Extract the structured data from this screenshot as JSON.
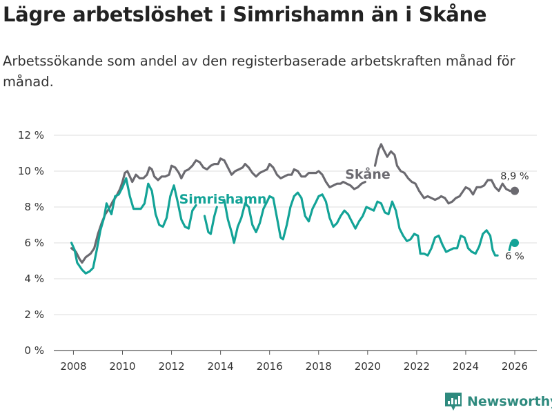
{
  "header": {
    "title": "Lägre arbetslöshet i Simrishamn än i Skåne",
    "subtitle": "Arbetssökande som andel av den registerbaserade arbetskraften månad för månad."
  },
  "brand": {
    "name": "Newsworthy"
  },
  "colors": {
    "skane": "#6b6a70",
    "simrishamn": "#13a397",
    "grid": "#dddddd",
    "brand": "#2e8a7e"
  },
  "chart_data": {
    "type": "line",
    "title": "Lägre arbetslöshet i Simrishamn än i Skåne",
    "subtitle": "Arbetssökande som andel av den registerbaserade arbetskraften månad för månad.",
    "xlabel": "",
    "ylabel": "",
    "xlim": [
      2007.2,
      2026.9
    ],
    "ylim": [
      0,
      12
    ],
    "x_ticks": [
      2008,
      2010,
      2012,
      2014,
      2016,
      2018,
      2020,
      2022,
      2024,
      2026
    ],
    "x_tick_labels": [
      "2008",
      "2010",
      "2012",
      "2014",
      "2016",
      "2018",
      "2020",
      "2022",
      "2024",
      "2026"
    ],
    "y_ticks": [
      0,
      2,
      4,
      6,
      8,
      10,
      12
    ],
    "y_tick_labels": [
      "0 %",
      "2 %",
      "4 %",
      "6 %",
      "8 %",
      "10 %",
      "12 %"
    ],
    "grid": true,
    "series": [
      {
        "name": "Skåne",
        "label": "Skåne",
        "end_label": "8,9 %",
        "end_value": 8.9,
        "end_x": 2026.0,
        "points": [
          [
            2007.92,
            5.7
          ],
          [
            2008.1,
            5.5
          ],
          [
            2008.25,
            5.1
          ],
          [
            2008.35,
            4.9
          ],
          [
            2008.5,
            5.2
          ],
          [
            2008.7,
            5.4
          ],
          [
            2008.85,
            5.7
          ],
          [
            2009.0,
            6.5
          ],
          [
            2009.15,
            7.1
          ],
          [
            2009.3,
            7.6
          ],
          [
            2009.45,
            7.9
          ],
          [
            2009.6,
            8.3
          ],
          [
            2009.75,
            8.6
          ],
          [
            2009.9,
            9.0
          ],
          [
            2010.0,
            9.4
          ],
          [
            2010.1,
            9.9
          ],
          [
            2010.2,
            10.0
          ],
          [
            2010.3,
            9.7
          ],
          [
            2010.4,
            9.4
          ],
          [
            2010.55,
            9.8
          ],
          [
            2010.7,
            9.6
          ],
          [
            2010.85,
            9.6
          ],
          [
            2011.0,
            9.8
          ],
          [
            2011.1,
            10.2
          ],
          [
            2011.2,
            10.1
          ],
          [
            2011.3,
            9.7
          ],
          [
            2011.45,
            9.5
          ],
          [
            2011.6,
            9.7
          ],
          [
            2011.75,
            9.7
          ],
          [
            2011.9,
            9.8
          ],
          [
            2012.0,
            10.3
          ],
          [
            2012.15,
            10.2
          ],
          [
            2012.3,
            9.9
          ],
          [
            2012.4,
            9.6
          ],
          [
            2012.55,
            10.0
          ],
          [
            2012.7,
            10.1
          ],
          [
            2012.85,
            10.3
          ],
          [
            2013.0,
            10.6
          ],
          [
            2013.15,
            10.5
          ],
          [
            2013.3,
            10.2
          ],
          [
            2013.45,
            10.1
          ],
          [
            2013.6,
            10.3
          ],
          [
            2013.75,
            10.4
          ],
          [
            2013.9,
            10.4
          ],
          [
            2014.0,
            10.7
          ],
          [
            2014.15,
            10.6
          ],
          [
            2014.3,
            10.2
          ],
          [
            2014.45,
            9.8
          ],
          [
            2014.6,
            10.0
          ],
          [
            2014.75,
            10.1
          ],
          [
            2014.9,
            10.2
          ],
          [
            2015.0,
            10.4
          ],
          [
            2015.15,
            10.2
          ],
          [
            2015.3,
            9.9
          ],
          [
            2015.45,
            9.7
          ],
          [
            2015.6,
            9.9
          ],
          [
            2015.75,
            10.0
          ],
          [
            2015.9,
            10.1
          ],
          [
            2016.0,
            10.4
          ],
          [
            2016.15,
            10.2
          ],
          [
            2016.3,
            9.8
          ],
          [
            2016.45,
            9.6
          ],
          [
            2016.6,
            9.7
          ],
          [
            2016.75,
            9.8
          ],
          [
            2016.9,
            9.8
          ],
          [
            2017.0,
            10.1
          ],
          [
            2017.15,
            10.0
          ],
          [
            2017.3,
            9.7
          ],
          [
            2017.45,
            9.7
          ],
          [
            2017.6,
            9.9
          ],
          [
            2017.75,
            9.9
          ],
          [
            2017.9,
            9.9
          ],
          [
            2018.0,
            10.0
          ],
          [
            2018.15,
            9.8
          ],
          [
            2018.3,
            9.4
          ],
          [
            2018.45,
            9.1
          ],
          [
            2018.6,
            9.2
          ],
          [
            2018.75,
            9.3
          ],
          [
            2018.9,
            9.3
          ],
          [
            2019.0,
            9.4
          ],
          [
            2019.15,
            9.3
          ],
          [
            2019.3,
            9.2
          ],
          [
            2019.45,
            9.0
          ],
          [
            2019.6,
            9.1
          ],
          [
            2019.75,
            9.3
          ],
          [
            2019.9,
            9.4
          ],
          [
            2020.05,
            null
          ],
          [
            2020.3,
            10.3
          ],
          [
            2020.45,
            11.2
          ],
          [
            2020.55,
            11.5
          ],
          [
            2020.65,
            11.2
          ],
          [
            2020.8,
            10.8
          ],
          [
            2020.95,
            11.1
          ],
          [
            2021.1,
            10.9
          ],
          [
            2021.2,
            10.3
          ],
          [
            2021.35,
            10.0
          ],
          [
            2021.5,
            9.9
          ],
          [
            2021.65,
            9.6
          ],
          [
            2021.8,
            9.4
          ],
          [
            2021.95,
            9.3
          ],
          [
            2022.1,
            8.9
          ],
          [
            2022.3,
            8.5
          ],
          [
            2022.45,
            8.6
          ],
          [
            2022.6,
            8.5
          ],
          [
            2022.75,
            8.4
          ],
          [
            2022.9,
            8.5
          ],
          [
            2023.0,
            8.6
          ],
          [
            2023.15,
            8.5
          ],
          [
            2023.3,
            8.2
          ],
          [
            2023.45,
            8.3
          ],
          [
            2023.6,
            8.5
          ],
          [
            2023.75,
            8.6
          ],
          [
            2023.9,
            8.9
          ],
          [
            2024.0,
            9.1
          ],
          [
            2024.15,
            9.0
          ],
          [
            2024.3,
            8.7
          ],
          [
            2024.45,
            9.1
          ],
          [
            2024.6,
            9.1
          ],
          [
            2024.75,
            9.2
          ],
          [
            2024.9,
            9.5
          ],
          [
            2025.05,
            9.5
          ],
          [
            2025.2,
            9.1
          ],
          [
            2025.35,
            8.9
          ],
          [
            2025.5,
            9.3
          ],
          [
            2025.65,
            9.0
          ],
          [
            2025.8,
            8.9
          ],
          [
            2026.0,
            8.9
          ]
        ]
      },
      {
        "name": "Simrishamn",
        "label": "Simrishamn",
        "end_label": "6 %",
        "end_value": 6.0,
        "end_x": 2026.0,
        "points": [
          [
            2007.92,
            6.0
          ],
          [
            2008.05,
            5.6
          ],
          [
            2008.15,
            4.9
          ],
          [
            2008.35,
            4.5
          ],
          [
            2008.5,
            4.3
          ],
          [
            2008.65,
            4.4
          ],
          [
            2008.8,
            4.6
          ],
          [
            2008.95,
            5.6
          ],
          [
            2009.1,
            6.7
          ],
          [
            2009.25,
            7.4
          ],
          [
            2009.35,
            8.2
          ],
          [
            2009.45,
            7.9
          ],
          [
            2009.55,
            7.6
          ],
          [
            2009.7,
            8.6
          ],
          [
            2009.85,
            8.7
          ],
          [
            2010.0,
            9.1
          ],
          [
            2010.15,
            9.6
          ],
          [
            2010.3,
            8.6
          ],
          [
            2010.45,
            7.9
          ],
          [
            2010.6,
            7.9
          ],
          [
            2010.75,
            7.9
          ],
          [
            2010.9,
            8.2
          ],
          [
            2011.05,
            9.3
          ],
          [
            2011.2,
            8.9
          ],
          [
            2011.35,
            7.6
          ],
          [
            2011.5,
            7.0
          ],
          [
            2011.65,
            6.9
          ],
          [
            2011.8,
            7.4
          ],
          [
            2011.95,
            8.6
          ],
          [
            2012.1,
            9.2
          ],
          [
            2012.25,
            8.3
          ],
          [
            2012.4,
            7.3
          ],
          [
            2012.55,
            6.9
          ],
          [
            2012.7,
            6.8
          ],
          [
            2012.85,
            7.8
          ],
          [
            2013.0,
            8.1
          ],
          [
            2013.1,
            null
          ],
          [
            2013.35,
            7.5
          ],
          [
            2013.5,
            6.6
          ],
          [
            2013.6,
            6.5
          ],
          [
            2013.75,
            7.5
          ],
          [
            2013.85,
            8.0
          ],
          [
            2013.95,
            null
          ],
          [
            2014.15,
            8.4
          ],
          [
            2014.3,
            7.3
          ],
          [
            2014.45,
            6.6
          ],
          [
            2014.55,
            6.0
          ],
          [
            2014.7,
            6.9
          ],
          [
            2014.85,
            7.4
          ],
          [
            2015.0,
            8.2
          ],
          [
            2015.15,
            8.0
          ],
          [
            2015.3,
            7.0
          ],
          [
            2015.45,
            6.6
          ],
          [
            2015.6,
            7.1
          ],
          [
            2015.75,
            7.9
          ],
          [
            2015.9,
            8.3
          ],
          [
            2016.0,
            8.6
          ],
          [
            2016.15,
            8.5
          ],
          [
            2016.3,
            7.4
          ],
          [
            2016.45,
            6.3
          ],
          [
            2016.55,
            6.2
          ],
          [
            2016.7,
            7.0
          ],
          [
            2016.85,
            8.0
          ],
          [
            2017.0,
            8.6
          ],
          [
            2017.15,
            8.8
          ],
          [
            2017.3,
            8.5
          ],
          [
            2017.45,
            7.5
          ],
          [
            2017.6,
            7.2
          ],
          [
            2017.75,
            7.9
          ],
          [
            2017.9,
            8.3
          ],
          [
            2018.0,
            8.6
          ],
          [
            2018.15,
            8.7
          ],
          [
            2018.3,
            8.3
          ],
          [
            2018.45,
            7.4
          ],
          [
            2018.6,
            6.9
          ],
          [
            2018.75,
            7.1
          ],
          [
            2018.9,
            7.5
          ],
          [
            2019.05,
            7.8
          ],
          [
            2019.2,
            7.6
          ],
          [
            2019.35,
            7.2
          ],
          [
            2019.5,
            6.8
          ],
          [
            2019.65,
            7.2
          ],
          [
            2019.8,
            7.5
          ],
          [
            2019.95,
            8.0
          ],
          [
            2020.1,
            7.9
          ],
          [
            2020.25,
            7.8
          ],
          [
            2020.4,
            8.3
          ],
          [
            2020.55,
            8.2
          ],
          [
            2020.7,
            7.7
          ],
          [
            2020.85,
            7.6
          ],
          [
            2021.0,
            8.3
          ],
          [
            2021.15,
            7.8
          ],
          [
            2021.3,
            6.8
          ],
          [
            2021.45,
            6.4
          ],
          [
            2021.6,
            6.1
          ],
          [
            2021.75,
            6.2
          ],
          [
            2021.9,
            6.5
          ],
          [
            2022.05,
            6.4
          ],
          [
            2022.15,
            5.4
          ],
          [
            2022.3,
            5.4
          ],
          [
            2022.45,
            5.3
          ],
          [
            2022.6,
            5.7
          ],
          [
            2022.75,
            6.3
          ],
          [
            2022.9,
            6.4
          ],
          [
            2023.05,
            5.9
          ],
          [
            2023.2,
            5.5
          ],
          [
            2023.35,
            5.6
          ],
          [
            2023.5,
            5.7
          ],
          [
            2023.65,
            5.7
          ],
          [
            2023.8,
            6.4
          ],
          [
            2023.95,
            6.3
          ],
          [
            2024.1,
            5.7
          ],
          [
            2024.25,
            5.5
          ],
          [
            2024.4,
            5.4
          ],
          [
            2024.55,
            5.8
          ],
          [
            2024.7,
            6.5
          ],
          [
            2024.85,
            6.7
          ],
          [
            2025.0,
            6.4
          ],
          [
            2025.1,
            5.6
          ],
          [
            2025.2,
            5.3
          ],
          [
            2025.3,
            5.3
          ],
          [
            2025.4,
            null
          ],
          [
            2025.78,
            5.6
          ],
          [
            2025.85,
            6.0
          ],
          [
            2026.0,
            6.0
          ]
        ]
      }
    ]
  }
}
